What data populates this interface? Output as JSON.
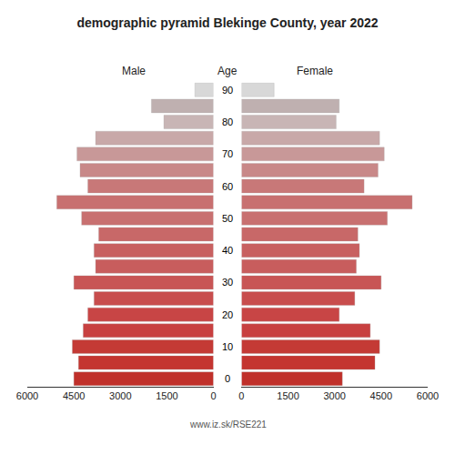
{
  "chart_data": {
    "type": "bar",
    "orientation": "horizontal",
    "title": "demographic pyramid Blekinge County, year 2022",
    "ylabel": "Age",
    "annotations": [
      "www.iz.sk/RSE221"
    ],
    "categories": [
      "0",
      null,
      "10",
      null,
      "20",
      null,
      "30",
      null,
      "40",
      null,
      "50",
      null,
      "60",
      null,
      "70",
      null,
      "80",
      null,
      "90"
    ],
    "series": [
      {
        "name": "Male",
        "values": [
          4500,
          4350,
          4550,
          4200,
          4050,
          3850,
          4500,
          3800,
          3850,
          3700,
          4250,
          5050,
          4050,
          4300,
          4400,
          3800,
          1600,
          2000,
          600
        ],
        "colors": [
          "#c0302a",
          "#c43530",
          "#c43a35",
          "#c84040",
          "#c84545",
          "#c84d4d",
          "#c85555",
          "#c85d5d",
          "#c86060",
          "#c86868",
          "#c87070",
          "#c87070",
          "#c87878",
          "#c88888",
          "#c89898",
          "#c8a8a8",
          "#c8b5b5",
          "#bfb0b0",
          "#d8d8d8"
        ]
      },
      {
        "name": "Female",
        "values": [
          3250,
          4300,
          4450,
          4150,
          3150,
          3650,
          4500,
          3700,
          3800,
          3750,
          4700,
          5500,
          3950,
          4400,
          4600,
          4450,
          3050,
          3150,
          1050
        ],
        "colors": [
          "#c0302a",
          "#c43530",
          "#c43a35",
          "#c84040",
          "#c84545",
          "#c84d4d",
          "#c85555",
          "#c85d5d",
          "#c86060",
          "#c86868",
          "#c87070",
          "#c87070",
          "#c87878",
          "#c88888",
          "#c89898",
          "#c8a8a8",
          "#c8b5b5",
          "#bfb0b0",
          "#d8d8d8"
        ]
      }
    ],
    "xlim": [
      0,
      6000
    ],
    "xticks": [
      0,
      1500,
      3000,
      4500,
      6000
    ],
    "grid": false
  }
}
